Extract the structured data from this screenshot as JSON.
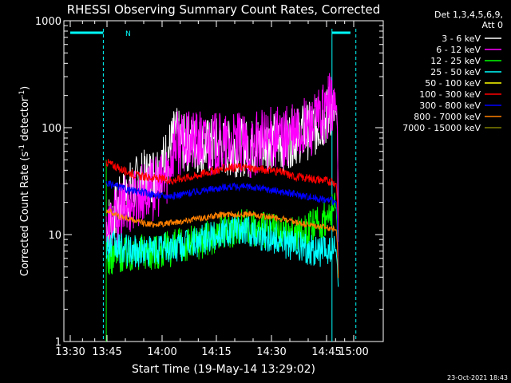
{
  "chart_data": {
    "type": "line",
    "title": "RHESSI Observing Summary Count Rates, Corrected",
    "xlabel": "Start Time (19-May-14 13:29:02)",
    "ylabel_main": "Corrected Count Rate (s",
    "ylabel_sup1": "-1",
    "ylabel_mid": " detector",
    "ylabel_sup2": "-1",
    "ylabel_end": ")",
    "yscale": "log",
    "ylim": [
      1,
      1000
    ],
    "xlim_minutes": [
      13.48,
      15.15
    ],
    "x_ticks": [
      {
        "label": "13:30",
        "value": 13.5
      },
      {
        "label": "13:45",
        "value": 13.75
      },
      {
        "label": "14:00",
        "value": 14.0
      },
      {
        "label": "14:15",
        "value": 14.25
      },
      {
        "label": "14:30",
        "value": 14.5
      },
      {
        "label": "14:45",
        "value": 14.75
      },
      {
        "label": "15:00",
        "value": 15.0
      }
    ],
    "y_ticks": [
      {
        "label": "1",
        "value": 1
      },
      {
        "label": "10",
        "value": 10
      },
      {
        "label": "100",
        "value": 100
      },
      {
        "label": "1000",
        "value": 1000
      }
    ],
    "legend_header": [
      "Det 1,3,4,5,6,9,",
      "Att 0"
    ],
    "legend_placement": "right",
    "footer_date": "23-Oct-2021 18:43",
    "night_label": "N",
    "night_bars": [
      {
        "start": 13.5,
        "end": 13.725
      },
      {
        "start": 14.8,
        "end": 14.97
      }
    ],
    "saa_dashed_lines": [
      13.725,
      15.02
    ],
    "solid_marker_lines": [
      14.8
    ],
    "data_start": 13.745,
    "data_end": 14.86,
    "series": [
      {
        "name": "3 - 6 keV",
        "color": "#ffffff",
        "points": [
          [
            13.745,
            12
          ],
          [
            13.8,
            18
          ],
          [
            13.85,
            26
          ],
          [
            13.9,
            32
          ],
          [
            13.95,
            36
          ],
          [
            14.0,
            45
          ],
          [
            14.03,
            60
          ],
          [
            14.06,
            85
          ],
          [
            14.1,
            72
          ],
          [
            14.15,
            70
          ],
          [
            14.2,
            66
          ],
          [
            14.25,
            68
          ],
          [
            14.3,
            63
          ],
          [
            14.35,
            65
          ],
          [
            14.4,
            64
          ],
          [
            14.45,
            70
          ],
          [
            14.5,
            75
          ],
          [
            14.55,
            72
          ],
          [
            14.6,
            82
          ],
          [
            14.65,
            90
          ],
          [
            14.7,
            100
          ],
          [
            14.75,
            125
          ],
          [
            14.78,
            150
          ],
          [
            14.8,
            140
          ],
          [
            14.84,
            135
          ],
          [
            14.85,
            95
          ],
          [
            14.86,
            4
          ]
        ]
      },
      {
        "name": "6 - 12 keV",
        "color": "#ff00ff",
        "points": [
          [
            13.745,
            11
          ],
          [
            13.8,
            15
          ],
          [
            13.85,
            20
          ],
          [
            13.9,
            24
          ],
          [
            13.95,
            26
          ],
          [
            14.0,
            30
          ],
          [
            14.03,
            42
          ],
          [
            14.06,
            75
          ],
          [
            14.1,
            68
          ],
          [
            14.15,
            75
          ],
          [
            14.2,
            72
          ],
          [
            14.25,
            70
          ],
          [
            14.3,
            68
          ],
          [
            14.35,
            70
          ],
          [
            14.4,
            64
          ],
          [
            14.45,
            75
          ],
          [
            14.5,
            80
          ],
          [
            14.55,
            78
          ],
          [
            14.6,
            85
          ],
          [
            14.65,
            95
          ],
          [
            14.7,
            110
          ],
          [
            14.75,
            140
          ],
          [
            14.78,
            170
          ],
          [
            14.8,
            165
          ],
          [
            14.84,
            160
          ],
          [
            14.85,
            100
          ],
          [
            14.86,
            5
          ]
        ]
      },
      {
        "name": "12 - 25 keV",
        "color": "#00ff00",
        "points": [
          [
            13.745,
            6
          ],
          [
            13.8,
            6.5
          ],
          [
            13.85,
            6.5
          ],
          [
            13.9,
            7
          ],
          [
            13.95,
            7
          ],
          [
            14.0,
            7
          ],
          [
            14.05,
            7.5
          ],
          [
            14.1,
            8
          ],
          [
            14.15,
            8.5
          ],
          [
            14.2,
            9
          ],
          [
            14.25,
            10
          ],
          [
            14.3,
            11
          ],
          [
            14.35,
            12
          ],
          [
            14.4,
            12
          ],
          [
            14.45,
            11
          ],
          [
            14.5,
            11
          ],
          [
            14.55,
            10
          ],
          [
            14.6,
            10
          ],
          [
            14.65,
            11
          ],
          [
            14.7,
            12
          ],
          [
            14.75,
            14
          ],
          [
            14.8,
            16
          ],
          [
            14.84,
            18
          ],
          [
            14.85,
            10
          ],
          [
            14.86,
            3
          ]
        ]
      },
      {
        "name": "25 - 50 keV",
        "color": "#00ffff",
        "points": [
          [
            13.745,
            8
          ],
          [
            13.8,
            7.5
          ],
          [
            13.85,
            7
          ],
          [
            13.9,
            7
          ],
          [
            13.95,
            7
          ],
          [
            14.0,
            7.5
          ],
          [
            14.05,
            7.5
          ],
          [
            14.1,
            8
          ],
          [
            14.15,
            8.5
          ],
          [
            14.2,
            9
          ],
          [
            14.25,
            10
          ],
          [
            14.3,
            11
          ],
          [
            14.35,
            11
          ],
          [
            14.4,
            11
          ],
          [
            14.45,
            10
          ],
          [
            14.5,
            9.5
          ],
          [
            14.55,
            8.5
          ],
          [
            14.6,
            8
          ],
          [
            14.65,
            7.5
          ],
          [
            14.7,
            7
          ],
          [
            14.75,
            7
          ],
          [
            14.8,
            7
          ],
          [
            14.84,
            7
          ],
          [
            14.85,
            5
          ],
          [
            14.86,
            2.5
          ]
        ]
      },
      {
        "name": "50 - 100 keV",
        "color": "#ffff00",
        "points": []
      },
      {
        "name": "100 - 300 keV",
        "color": "#ff0000",
        "points": [
          [
            13.745,
            48
          ],
          [
            13.8,
            42
          ],
          [
            13.85,
            38
          ],
          [
            13.9,
            35
          ],
          [
            13.95,
            34
          ],
          [
            14.0,
            33
          ],
          [
            14.05,
            32
          ],
          [
            14.1,
            34
          ],
          [
            14.15,
            35
          ],
          [
            14.2,
            38
          ],
          [
            14.25,
            40
          ],
          [
            14.3,
            42
          ],
          [
            14.35,
            43
          ],
          [
            14.4,
            42
          ],
          [
            14.45,
            41
          ],
          [
            14.5,
            40
          ],
          [
            14.55,
            38
          ],
          [
            14.6,
            35
          ],
          [
            14.65,
            34
          ],
          [
            14.7,
            33
          ],
          [
            14.75,
            32
          ],
          [
            14.8,
            31
          ],
          [
            14.84,
            30
          ],
          [
            14.85,
            20
          ],
          [
            14.86,
            4
          ]
        ]
      },
      {
        "name": "300 - 800 keV",
        "color": "#0000ff",
        "points": [
          [
            13.745,
            30
          ],
          [
            13.8,
            28
          ],
          [
            13.85,
            26
          ],
          [
            13.9,
            25
          ],
          [
            13.95,
            24
          ],
          [
            14.0,
            23
          ],
          [
            14.05,
            23
          ],
          [
            14.1,
            24
          ],
          [
            14.15,
            25
          ],
          [
            14.2,
            26
          ],
          [
            14.25,
            27
          ],
          [
            14.3,
            28
          ],
          [
            14.35,
            28
          ],
          [
            14.4,
            28
          ],
          [
            14.45,
            27
          ],
          [
            14.5,
            26
          ],
          [
            14.55,
            25
          ],
          [
            14.6,
            24
          ],
          [
            14.65,
            23
          ],
          [
            14.7,
            22
          ],
          [
            14.75,
            21
          ],
          [
            14.8,
            21
          ],
          [
            14.84,
            20
          ],
          [
            14.85,
            14
          ],
          [
            14.86,
            3
          ]
        ]
      },
      {
        "name": "800 - 7000 keV",
        "color": "#ff8000",
        "points": [
          [
            13.745,
            17
          ],
          [
            13.8,
            15
          ],
          [
            13.85,
            14
          ],
          [
            13.9,
            13
          ],
          [
            13.95,
            12.5
          ],
          [
            14.0,
            12.5
          ],
          [
            14.05,
            13
          ],
          [
            14.1,
            13.5
          ],
          [
            14.15,
            14
          ],
          [
            14.2,
            14.5
          ],
          [
            14.25,
            15
          ],
          [
            14.3,
            15.5
          ],
          [
            14.35,
            15.5
          ],
          [
            14.4,
            15.5
          ],
          [
            14.45,
            15
          ],
          [
            14.5,
            14.5
          ],
          [
            14.55,
            14
          ],
          [
            14.6,
            13
          ],
          [
            14.65,
            12.5
          ],
          [
            14.7,
            12
          ],
          [
            14.75,
            11.5
          ],
          [
            14.8,
            11.5
          ],
          [
            14.84,
            11
          ],
          [
            14.85,
            8
          ],
          [
            14.86,
            3
          ]
        ]
      },
      {
        "name": "7000 - 15000 keV",
        "color": "#808000",
        "points": []
      }
    ]
  }
}
